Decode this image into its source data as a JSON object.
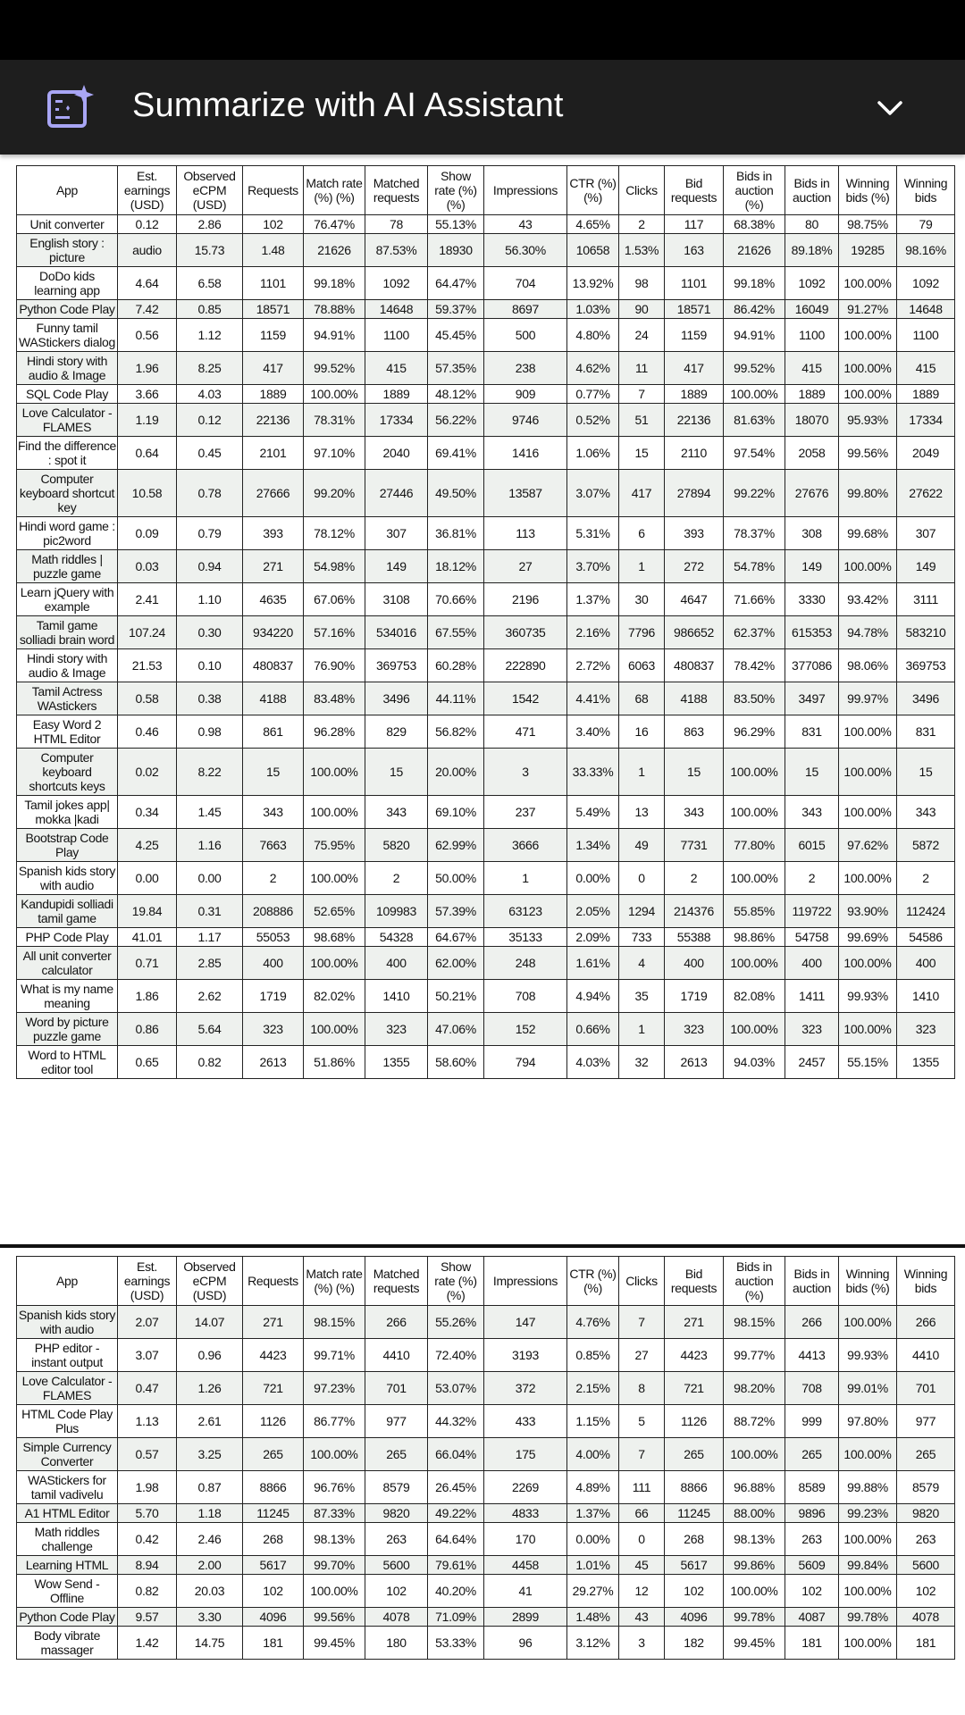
{
  "header": {
    "title": "Summarize with AI Assistant",
    "icon": "ai-document-sparkle-icon",
    "expand_icon": "chevron-down-icon",
    "accent_color": "#a9a6f5"
  },
  "columns": [
    "App",
    "Est. earnings (USD)",
    "Observed eCPM (USD)",
    "Requests",
    "Match rate (%) (%)",
    "Matched requests",
    "Show rate (%) (%)",
    "Impressions",
    "CTR (%) (%)",
    "Clicks",
    "Bid requests",
    "Bids in auction (%)",
    "Bids in auction",
    "Winning bids (%)",
    "Winning bids"
  ],
  "tables": [
    {
      "rows": [
        [
          "Unit converter",
          "0.12",
          "2.86",
          "102",
          "76.47%",
          "78",
          "55.13%",
          "43",
          "4.65%",
          "2",
          "117",
          "68.38%",
          "80",
          "98.75%",
          "79"
        ],
        [
          "English story : picture",
          "audio",
          "15.73",
          "1.48",
          "21626",
          "87.53%",
          "18930",
          "56.30%",
          "10658",
          "1.53%",
          "163",
          "21626",
          "89.18%",
          "19285",
          "98.16%"
        ],
        [
          "DoDo kids learning app",
          "4.64",
          "6.58",
          "1101",
          "99.18%",
          "1092",
          "64.47%",
          "704",
          "13.92%",
          "98",
          "1101",
          "99.18%",
          "1092",
          "100.00%",
          "1092"
        ],
        [
          "Python Code Play",
          "7.42",
          "0.85",
          "18571",
          "78.88%",
          "14648",
          "59.37%",
          "8697",
          "1.03%",
          "90",
          "18571",
          "86.42%",
          "16049",
          "91.27%",
          "14648"
        ],
        [
          "Funny tamil WAStickers dialog",
          "0.56",
          "1.12",
          "1159",
          "94.91%",
          "1100",
          "45.45%",
          "500",
          "4.80%",
          "24",
          "1159",
          "94.91%",
          "1100",
          "100.00%",
          "1100"
        ],
        [
          "Hindi story with audio & Image",
          "1.96",
          "8.25",
          "417",
          "99.52%",
          "415",
          "57.35%",
          "238",
          "4.62%",
          "11",
          "417",
          "99.52%",
          "415",
          "100.00%",
          "415"
        ],
        [
          "SQL Code Play",
          "3.66",
          "4.03",
          "1889",
          "100.00%",
          "1889",
          "48.12%",
          "909",
          "0.77%",
          "7",
          "1889",
          "100.00%",
          "1889",
          "100.00%",
          "1889"
        ],
        [
          "Love Calculator - FLAMES",
          "1.19",
          "0.12",
          "22136",
          "78.31%",
          "17334",
          "56.22%",
          "9746",
          "0.52%",
          "51",
          "22136",
          "81.63%",
          "18070",
          "95.93%",
          "17334"
        ],
        [
          "Find the difference : spot it",
          "0.64",
          "0.45",
          "2101",
          "97.10%",
          "2040",
          "69.41%",
          "1416",
          "1.06%",
          "15",
          "2110",
          "97.54%",
          "2058",
          "99.56%",
          "2049"
        ],
        [
          "Computer keyboard shortcut key",
          "10.58",
          "0.78",
          "27666",
          "99.20%",
          "27446",
          "49.50%",
          "13587",
          "3.07%",
          "417",
          "27894",
          "99.22%",
          "27676",
          "99.80%",
          "27622"
        ],
        [
          "Hindi word game : pic2word",
          "0.09",
          "0.79",
          "393",
          "78.12%",
          "307",
          "36.81%",
          "113",
          "5.31%",
          "6",
          "393",
          "78.37%",
          "308",
          "99.68%",
          "307"
        ],
        [
          "Math riddles | puzzle game",
          "0.03",
          "0.94",
          "271",
          "54.98%",
          "149",
          "18.12%",
          "27",
          "3.70%",
          "1",
          "272",
          "54.78%",
          "149",
          "100.00%",
          "149"
        ],
        [
          "Learn jQuery with example",
          "2.41",
          "1.10",
          "4635",
          "67.06%",
          "3108",
          "70.66%",
          "2196",
          "1.37%",
          "30",
          "4647",
          "71.66%",
          "3330",
          "93.42%",
          "3111"
        ],
        [
          "Tamil game solliadi brain word",
          "107.24",
          "0.30",
          "934220",
          "57.16%",
          "534016",
          "67.55%",
          "360735",
          "2.16%",
          "7796",
          "986652",
          "62.37%",
          "615353",
          "94.78%",
          "583210"
        ],
        [
          "Hindi story with audio & Image",
          "21.53",
          "0.10",
          "480837",
          "76.90%",
          "369753",
          "60.28%",
          "222890",
          "2.72%",
          "6063",
          "480837",
          "78.42%",
          "377086",
          "98.06%",
          "369753"
        ],
        [
          "Tamil Actress WAstickers",
          "0.58",
          "0.38",
          "4188",
          "83.48%",
          "3496",
          "44.11%",
          "1542",
          "4.41%",
          "68",
          "4188",
          "83.50%",
          "3497",
          "99.97%",
          "3496"
        ],
        [
          "Easy Word 2 HTML Editor",
          "0.46",
          "0.98",
          "861",
          "96.28%",
          "829",
          "56.82%",
          "471",
          "3.40%",
          "16",
          "863",
          "96.29%",
          "831",
          "100.00%",
          "831"
        ],
        [
          "Computer keyboard shortcuts keys",
          "0.02",
          "8.22",
          "15",
          "100.00%",
          "15",
          "20.00%",
          "3",
          "33.33%",
          "1",
          "15",
          "100.00%",
          "15",
          "100.00%",
          "15"
        ],
        [
          "Tamil jokes app| mokka |kadi",
          "0.34",
          "1.45",
          "343",
          "100.00%",
          "343",
          "69.10%",
          "237",
          "5.49%",
          "13",
          "343",
          "100.00%",
          "343",
          "100.00%",
          "343"
        ],
        [
          "Bootstrap Code Play",
          "4.25",
          "1.16",
          "7663",
          "75.95%",
          "5820",
          "62.99%",
          "3666",
          "1.34%",
          "49",
          "7731",
          "77.80%",
          "6015",
          "97.62%",
          "5872"
        ],
        [
          "Spanish kids story with audio",
          "0.00",
          "0.00",
          "2",
          "100.00%",
          "2",
          "50.00%",
          "1",
          "0.00%",
          "0",
          "2",
          "100.00%",
          "2",
          "100.00%",
          "2"
        ],
        [
          "Kandupidi solliadi tamil game",
          "19.84",
          "0.31",
          "208886",
          "52.65%",
          "109983",
          "57.39%",
          "63123",
          "2.05%",
          "1294",
          "214376",
          "55.85%",
          "119722",
          "93.90%",
          "112424"
        ],
        [
          "PHP Code Play",
          "41.01",
          "1.17",
          "55053",
          "98.68%",
          "54328",
          "64.67%",
          "35133",
          "2.09%",
          "733",
          "55388",
          "98.86%",
          "54758",
          "99.69%",
          "54586"
        ],
        [
          "All unit converter calculator",
          "0.71",
          "2.85",
          "400",
          "100.00%",
          "400",
          "62.00%",
          "248",
          "1.61%",
          "4",
          "400",
          "100.00%",
          "400",
          "100.00%",
          "400"
        ],
        [
          "What is my name meaning",
          "1.86",
          "2.62",
          "1719",
          "82.02%",
          "1410",
          "50.21%",
          "708",
          "4.94%",
          "35",
          "1719",
          "82.08%",
          "1411",
          "99.93%",
          "1410"
        ],
        [
          "Word by picture puzzle game",
          "0.86",
          "5.64",
          "323",
          "100.00%",
          "323",
          "47.06%",
          "152",
          "0.66%",
          "1",
          "323",
          "100.00%",
          "323",
          "100.00%",
          "323"
        ],
        [
          "Word to HTML editor tool",
          "0.65",
          "0.82",
          "2613",
          "51.86%",
          "1355",
          "58.60%",
          "794",
          "4.03%",
          "32",
          "2613",
          "94.03%",
          "2457",
          "55.15%",
          "1355"
        ]
      ]
    },
    {
      "rows": [
        [
          "Spanish kids story with audio",
          "2.07",
          "14.07",
          "271",
          "98.15%",
          "266",
          "55.26%",
          "147",
          "4.76%",
          "7",
          "271",
          "98.15%",
          "266",
          "100.00%",
          "266"
        ],
        [
          "PHP editor - instant output",
          "3.07",
          "0.96",
          "4423",
          "99.71%",
          "4410",
          "72.40%",
          "3193",
          "0.85%",
          "27",
          "4423",
          "99.77%",
          "4413",
          "99.93%",
          "4410"
        ],
        [
          "Love Calculator - FLAMES",
          "0.47",
          "1.26",
          "721",
          "97.23%",
          "701",
          "53.07%",
          "372",
          "2.15%",
          "8",
          "721",
          "98.20%",
          "708",
          "99.01%",
          "701"
        ],
        [
          "HTML Code Play Plus",
          "1.13",
          "2.61",
          "1126",
          "86.77%",
          "977",
          "44.32%",
          "433",
          "1.15%",
          "5",
          "1126",
          "88.72%",
          "999",
          "97.80%",
          "977"
        ],
        [
          "Simple Currency Converter",
          "0.57",
          "3.25",
          "265",
          "100.00%",
          "265",
          "66.04%",
          "175",
          "4.00%",
          "7",
          "265",
          "100.00%",
          "265",
          "100.00%",
          "265"
        ],
        [
          "WAStickers for tamil vadivelu",
          "1.98",
          "0.87",
          "8866",
          "96.76%",
          "8579",
          "26.45%",
          "2269",
          "4.89%",
          "111",
          "8866",
          "96.88%",
          "8589",
          "99.88%",
          "8579"
        ],
        [
          "A1 HTML Editor",
          "5.70",
          "1.18",
          "11245",
          "87.33%",
          "9820",
          "49.22%",
          "4833",
          "1.37%",
          "66",
          "11245",
          "88.00%",
          "9896",
          "99.23%",
          "9820"
        ],
        [
          "Math riddles challenge",
          "0.42",
          "2.46",
          "268",
          "98.13%",
          "263",
          "64.64%",
          "170",
          "0.00%",
          "0",
          "268",
          "98.13%",
          "263",
          "100.00%",
          "263"
        ],
        [
          "Learning HTML",
          "8.94",
          "2.00",
          "5617",
          "99.70%",
          "5600",
          "79.61%",
          "4458",
          "1.01%",
          "45",
          "5617",
          "99.86%",
          "5609",
          "99.84%",
          "5600"
        ],
        [
          "Wow Send - Offline",
          "0.82",
          "20.03",
          "102",
          "100.00%",
          "102",
          "40.20%",
          "41",
          "29.27%",
          "12",
          "102",
          "100.00%",
          "102",
          "100.00%",
          "102"
        ],
        [
          "Python Code Play",
          "9.57",
          "3.30",
          "4096",
          "99.56%",
          "4078",
          "71.09%",
          "2899",
          "1.48%",
          "43",
          "4096",
          "99.78%",
          "4087",
          "99.78%",
          "4078"
        ],
        [
          "Body vibrate massager",
          "1.42",
          "14.75",
          "181",
          "99.45%",
          "180",
          "53.33%",
          "96",
          "3.12%",
          "3",
          "182",
          "99.45%",
          "181",
          "100.00%",
          "181"
        ]
      ]
    }
  ]
}
